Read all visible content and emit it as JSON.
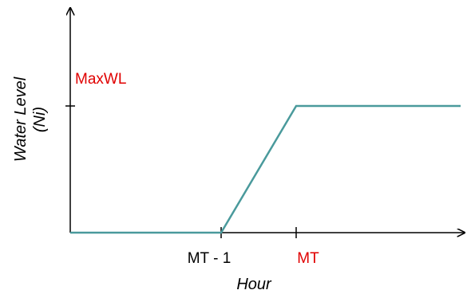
{
  "chart_data": {
    "type": "line",
    "title": "",
    "xlabel": "Hour",
    "ylabel_line1": "Water Level",
    "ylabel_line2": "(Ni)",
    "x_ticks": [
      {
        "label": "MT - 1",
        "color": "#000000"
      },
      {
        "label": "MT",
        "color": "#e00000"
      }
    ],
    "y_ticks": [
      {
        "label": "MaxWL",
        "color": "#e00000"
      }
    ],
    "series": [
      {
        "color": "#4a9a9c",
        "points": [
          {
            "x": "start",
            "y": 0
          },
          {
            "x": "MT - 1",
            "y": 0
          },
          {
            "x": "MT",
            "y": "MaxWL"
          },
          {
            "x": "end",
            "y": "MaxWL"
          }
        ]
      }
    ],
    "grid": false,
    "legend": "none"
  }
}
